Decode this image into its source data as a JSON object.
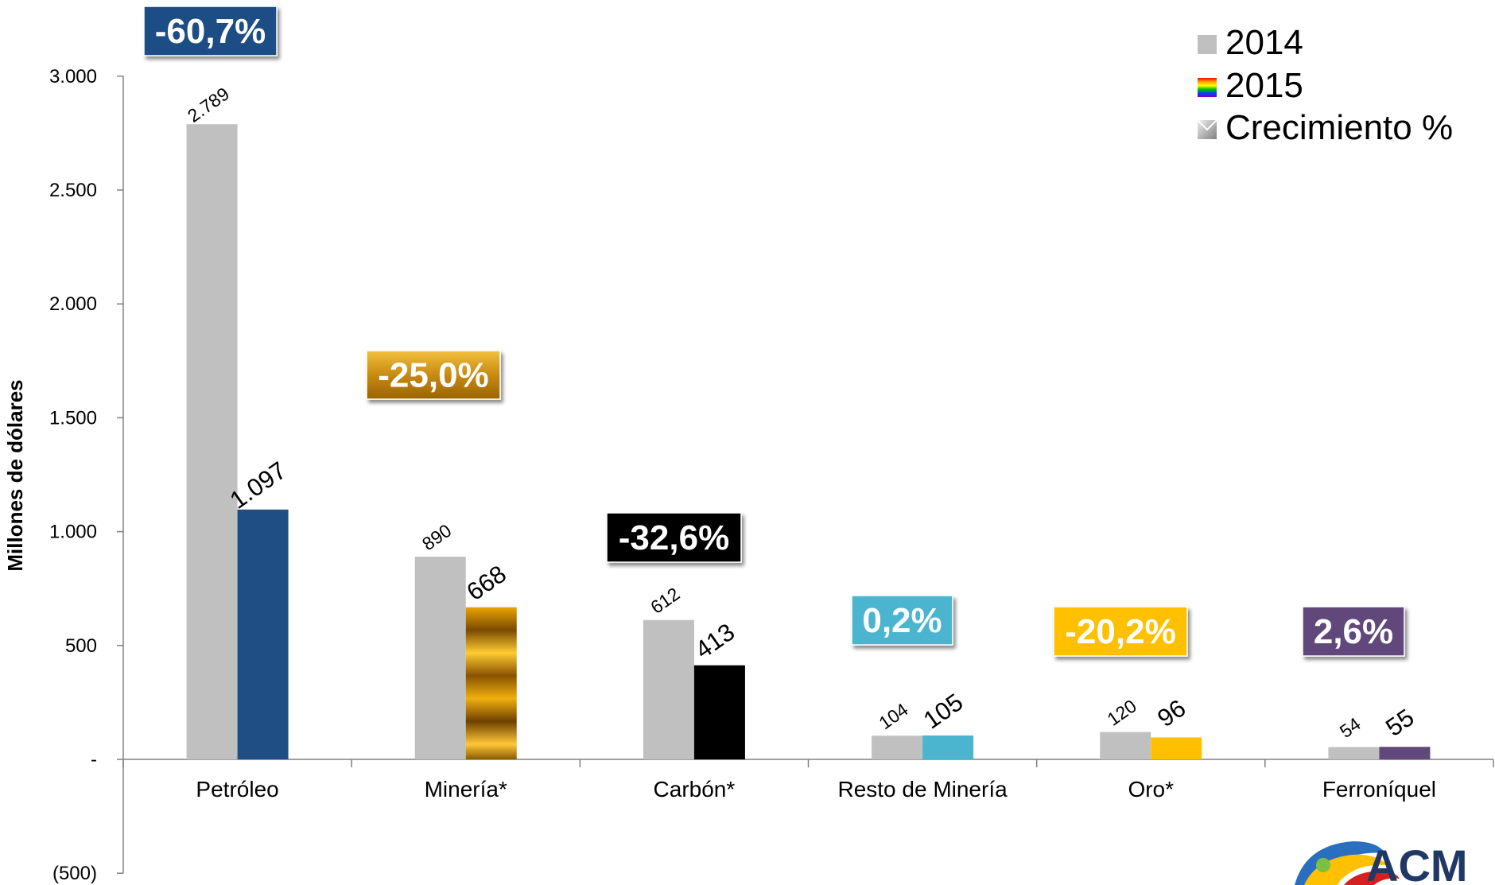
{
  "chart_data": {
    "type": "bar",
    "title": "",
    "xlabel": "",
    "ylabel": "Millones de dólares",
    "ylim": [
      -500,
      3000
    ],
    "yticks": [
      {
        "value": -500,
        "label": "(500)"
      },
      {
        "value": 0,
        "label": "-"
      },
      {
        "value": 500,
        "label": "500"
      },
      {
        "value": 1000,
        "label": "1.000"
      },
      {
        "value": 1500,
        "label": "1.500"
      },
      {
        "value": 2000,
        "label": "2.000"
      },
      {
        "value": 2500,
        "label": "2.500"
      },
      {
        "value": 3000,
        "label": "3.000"
      }
    ],
    "categories": [
      "Petróleo",
      "Minería*",
      "Carbón*",
      "Resto de Minería",
      "Oro*",
      "Ferroníquel"
    ],
    "series": [
      {
        "name": "2014",
        "values": [
          2789,
          890,
          612,
          104,
          120,
          54
        ],
        "labels": [
          "2.789",
          "890",
          "612",
          "104",
          "120",
          "54"
        ],
        "color": "#c0c0c0"
      },
      {
        "name": "2015",
        "values": [
          1097,
          668,
          413,
          105,
          96,
          55
        ],
        "labels": [
          "1.097",
          "668",
          "413",
          "105",
          "96",
          "55"
        ],
        "colors": [
          "#1f4e85",
          "#c88a10",
          "#000000",
          "#4bb5d0",
          "#ffc000",
          "#60497a"
        ]
      }
    ],
    "growth": {
      "name": "Crecimiento %",
      "labels": [
        "-60,7%",
        "-25,0%",
        "-32,6%",
        "0,2%",
        "-20,2%",
        "2,6%"
      ],
      "colors": [
        "#1f4e85",
        "#b8860b",
        "#000000",
        "#4bb5d0",
        "#ffc000",
        "#60497a"
      ]
    },
    "grid": false,
    "legend_position": "top-right"
  },
  "logo": {
    "text": "ACM",
    "color": "#1f3864"
  }
}
